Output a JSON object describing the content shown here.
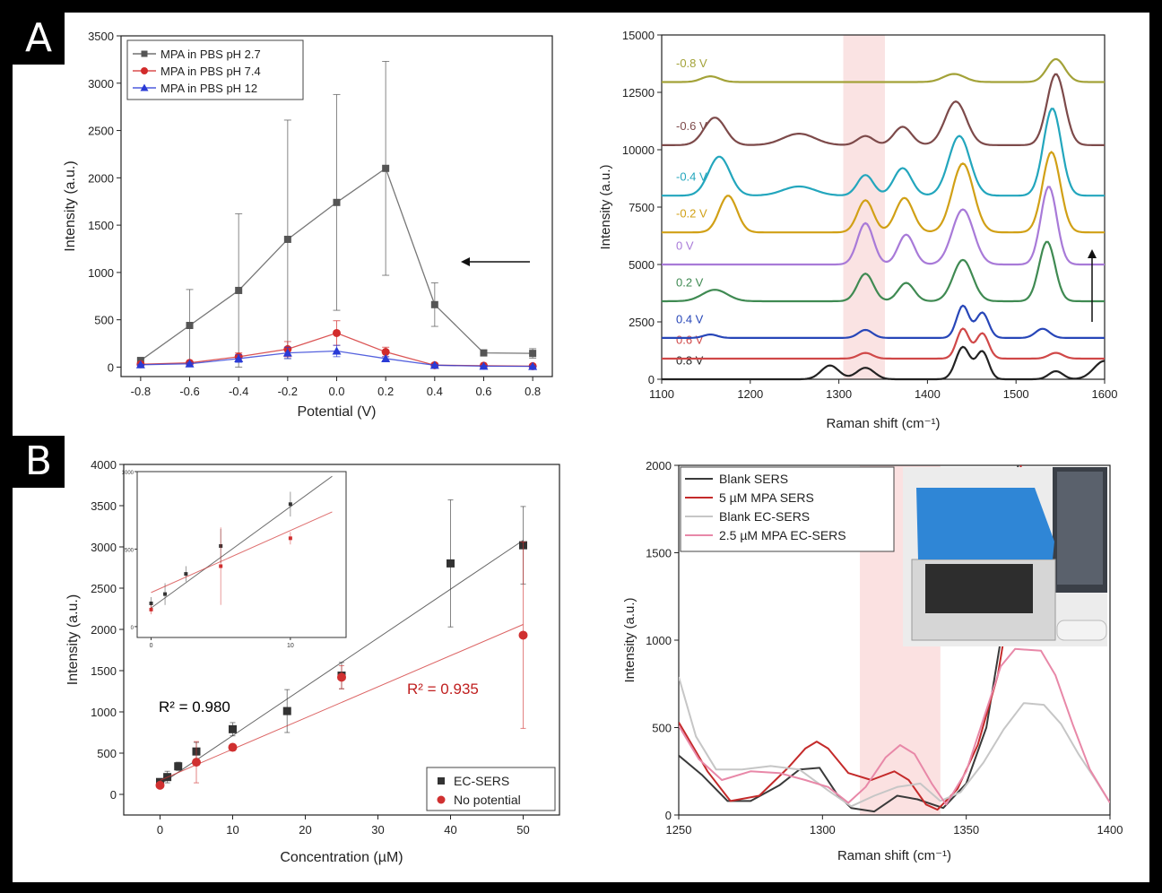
{
  "panel_labels": [
    "A",
    "B"
  ],
  "chart_data": [
    {
      "id": "A-left",
      "type": "line",
      "xlabel": "Potential (V)",
      "ylabel": "Intensity (a.u.)",
      "xlim": [
        -0.88,
        0.88
      ],
      "ylim": [
        -100,
        3500
      ],
      "xticks": [
        -0.8,
        -0.6,
        -0.4,
        -0.2,
        0.0,
        0.2,
        0.4,
        0.6,
        0.8
      ],
      "xtick_labels": [
        "-0.8",
        "-0.6",
        "-0.4",
        "-0.2",
        "0.0",
        "0.2",
        "0.4",
        "0.6",
        "0.8"
      ],
      "yticks": [
        0,
        500,
        1000,
        1500,
        2000,
        2500,
        3000,
        3500
      ],
      "legend_position": "top-left",
      "series": [
        {
          "name": "MPA in PBS pH 2.7",
          "color": "#555555",
          "marker": "square",
          "x": [
            -0.8,
            -0.6,
            -0.4,
            -0.2,
            0.0,
            0.2,
            0.4,
            0.6,
            0.8
          ],
          "y": [
            70,
            440,
            810,
            1350,
            1740,
            2100,
            660,
            150,
            145
          ],
          "err": [
            20,
            380,
            810,
            1260,
            1140,
            1130,
            230,
            30,
            50
          ]
        },
        {
          "name": "MPA in PBS pH 7.4",
          "color": "#d22b2b",
          "marker": "circle",
          "x": [
            -0.8,
            -0.6,
            -0.4,
            -0.2,
            0.0,
            0.2,
            0.4,
            0.6,
            0.8
          ],
          "y": [
            30,
            45,
            110,
            190,
            360,
            160,
            20,
            15,
            10
          ],
          "err": [
            5,
            15,
            40,
            80,
            130,
            50,
            10,
            5,
            5
          ]
        },
        {
          "name": "MPA in PBS pH 12",
          "color": "#2a3bd6",
          "marker": "triangle",
          "x": [
            -0.8,
            -0.6,
            -0.4,
            -0.2,
            0.0,
            0.2,
            0.4,
            0.6,
            0.8
          ],
          "y": [
            25,
            35,
            90,
            150,
            170,
            90,
            20,
            10,
            8
          ],
          "err": [
            5,
            15,
            40,
            60,
            60,
            20,
            10,
            5,
            5
          ]
        }
      ]
    },
    {
      "id": "A-right",
      "type": "line",
      "xlabel": "Raman shift (cm⁻¹)",
      "ylabel": "Intensity (a.u.)",
      "xlim": [
        1100,
        1600
      ],
      "ylim": [
        0,
        15000
      ],
      "xticks": [
        1100,
        1200,
        1300,
        1400,
        1500,
        1600
      ],
      "yticks": [
        0,
        2500,
        5000,
        7500,
        10000,
        12500,
        15000
      ],
      "ytick_labels": [
        "0",
        "2500",
        "5000",
        "7500",
        "10000",
        "12500",
        "15000"
      ],
      "highlight_band": [
        1305,
        1352
      ],
      "series": [
        {
          "name": "0.8 V",
          "color": "#222222",
          "baseline": 0,
          "peaks": [
            [
              1290,
              600,
              10
            ],
            [
              1330,
              500,
              10
            ],
            [
              1440,
              1400,
              8
            ],
            [
              1462,
              1200,
              7
            ],
            [
              1545,
              350,
              8
            ],
            [
              1600,
              800,
              12
            ]
          ]
        },
        {
          "name": "0.6 V",
          "color": "#d04848",
          "baseline": 900,
          "peaks": [
            [
              1330,
              250,
              8
            ],
            [
              1440,
              1300,
              7
            ],
            [
              1462,
              1100,
              7
            ],
            [
              1545,
              250,
              8
            ]
          ]
        },
        {
          "name": "0.4 V",
          "color": "#2746b8",
          "baseline": 1800,
          "peaks": [
            [
              1155,
              150,
              8
            ],
            [
              1330,
              350,
              8
            ],
            [
              1440,
              1400,
              7
            ],
            [
              1462,
              1100,
              7
            ],
            [
              1530,
              400,
              8
            ]
          ]
        },
        {
          "name": "0.2 V",
          "color": "#3f8a52",
          "baseline": 3400,
          "peaks": [
            [
              1160,
              500,
              14
            ],
            [
              1330,
              1200,
              9
            ],
            [
              1376,
              800,
              9
            ],
            [
              1440,
              1800,
              11
            ],
            [
              1535,
              2600,
              9
            ]
          ]
        },
        {
          "name": "0 V",
          "color": "#a87ad8",
          "baseline": 5000,
          "peaks": [
            [
              1330,
              1800,
              9
            ],
            [
              1376,
              1300,
              9
            ],
            [
              1440,
              2400,
              12
            ],
            [
              1537,
              3400,
              9
            ]
          ]
        },
        {
          "name": "-0.2 V",
          "color": "#d1a016",
          "baseline": 6400,
          "peaks": [
            [
              1175,
              1600,
              10
            ],
            [
              1330,
              1400,
              9
            ],
            [
              1374,
              1500,
              10
            ],
            [
              1440,
              3000,
              12
            ],
            [
              1540,
              3500,
              10
            ]
          ]
        },
        {
          "name": "-0.4 V",
          "color": "#23a6bd",
          "baseline": 8000,
          "peaks": [
            [
              1165,
              1700,
              12
            ],
            [
              1255,
              400,
              18
            ],
            [
              1330,
              900,
              9
            ],
            [
              1372,
              1200,
              10
            ],
            [
              1436,
              2600,
              12
            ],
            [
              1541,
              3800,
              10
            ]
          ]
        },
        {
          "name": "-0.6 V",
          "color": "#7d4a4a",
          "baseline": 10200,
          "peaks": [
            [
              1160,
              1200,
              12
            ],
            [
              1255,
              500,
              18
            ],
            [
              1330,
              400,
              9
            ],
            [
              1372,
              800,
              10
            ],
            [
              1432,
              1900,
              12
            ],
            [
              1545,
              3100,
              10
            ]
          ]
        },
        {
          "name": "-0.8 V",
          "color": "#a3a238",
          "baseline": 12950,
          "peaks": [
            [
              1155,
              250,
              10
            ],
            [
              1430,
              350,
              12
            ],
            [
              1545,
              1000,
              10
            ]
          ]
        }
      ]
    },
    {
      "id": "B-left",
      "type": "scatter",
      "xlabel": "Concentration (µM)",
      "ylabel": "Intensity (a.u.)",
      "xlim": [
        -5,
        55
      ],
      "ylim": [
        -250,
        4000
      ],
      "xticks": [
        0,
        10,
        20,
        30,
        40,
        50
      ],
      "yticks": [
        0,
        500,
        1000,
        1500,
        2000,
        2500,
        3000,
        3500,
        4000
      ],
      "legend_position": "bottom-right",
      "annotations": [
        {
          "text": "R² = 0.980",
          "color": "#000000"
        },
        {
          "text": "R² = 0.935",
          "color": "#c02020"
        }
      ],
      "series": [
        {
          "name": "EC-SERS",
          "color": "#333333",
          "marker": "square",
          "x": [
            0,
            1,
            2.5,
            5,
            10,
            17.5,
            25,
            40,
            50
          ],
          "y": [
            150,
            210,
            340,
            520,
            790,
            1010,
            1440,
            2800,
            3020
          ],
          "err": [
            40,
            70,
            50,
            110,
            80,
            260,
            160,
            770,
            470
          ],
          "fit": [
            [
              0,
              120
            ],
            [
              50,
              3080
            ]
          ]
        },
        {
          "name": "No potential",
          "color": "#d03030",
          "marker": "circle",
          "x": [
            0,
            5,
            10,
            25,
            50
          ],
          "y": [
            110,
            390,
            570,
            1420,
            1930
          ],
          "err": [
            30,
            250,
            40,
            140,
            1130
          ],
          "fit": [
            [
              0,
              170
            ],
            [
              50,
              2060
            ]
          ]
        }
      ],
      "inset": {
        "xlim": [
          -1,
          14
        ],
        "ylim": [
          -70,
          1000
        ],
        "xticks": [
          0,
          10
        ],
        "yticks": [
          0,
          500,
          1000
        ],
        "series": [
          {
            "color": "#333333",
            "x": [
              0,
              1,
              2.5,
              5,
              10
            ],
            "y": [
              150,
              210,
              340,
              520,
              790
            ],
            "err": [
              40,
              70,
              50,
              110,
              80
            ],
            "fit": [
              [
                0,
                120
              ],
              [
                13,
                970
              ]
            ]
          },
          {
            "color": "#d03030",
            "x": [
              0,
              5,
              10
            ],
            "y": [
              110,
              390,
              570
            ],
            "err": [
              30,
              250,
              40
            ],
            "fit": [
              [
                0,
                220
              ],
              [
                13,
                740
              ]
            ]
          }
        ]
      }
    },
    {
      "id": "B-right",
      "type": "line",
      "xlabel": "Raman shift (cm⁻¹)",
      "ylabel": "Intensity (a.u.)",
      "xlim": [
        1250,
        1400
      ],
      "ylim": [
        0,
        2000
      ],
      "xticks": [
        1250,
        1300,
        1350,
        1400
      ],
      "yticks": [
        0,
        500,
        1000,
        1500,
        2000
      ],
      "highlight_band": [
        1313,
        1341
      ],
      "legend_position": "top-left",
      "series": [
        {
          "name": "Blank SERS",
          "color": "#3a3a3a",
          "points": [
            [
              1250,
              340
            ],
            [
              1258,
              230
            ],
            [
              1267,
              80
            ],
            [
              1275,
              80
            ],
            [
              1285,
              170
            ],
            [
              1292,
              260
            ],
            [
              1299,
              270
            ],
            [
              1305,
              120
            ],
            [
              1310,
              40
            ],
            [
              1318,
              20
            ],
            [
              1326,
              110
            ],
            [
              1333,
              90
            ],
            [
              1342,
              40
            ],
            [
              1350,
              180
            ],
            [
              1357,
              500
            ],
            [
              1362,
              1000
            ],
            [
              1366,
              1600
            ],
            [
              1368,
              2000
            ]
          ]
        },
        {
          "name": "5 µM MPA SERS",
          "color": "#c42a2a",
          "points": [
            [
              1250,
              530
            ],
            [
              1260,
              250
            ],
            [
              1268,
              80
            ],
            [
              1278,
              110
            ],
            [
              1288,
              270
            ],
            [
              1294,
              380
            ],
            [
              1298,
              420
            ],
            [
              1302,
              380
            ],
            [
              1309,
              240
            ],
            [
              1317,
              200
            ],
            [
              1325,
              250
            ],
            [
              1330,
              200
            ],
            [
              1336,
              60
            ],
            [
              1340,
              30
            ],
            [
              1347,
              150
            ],
            [
              1354,
              400
            ],
            [
              1361,
              800
            ],
            [
              1366,
              1300
            ],
            [
              1369,
              2000
            ]
          ]
        },
        {
          "name": "Blank EC-SERS",
          "color": "#c6c6c6",
          "points": [
            [
              1250,
              790
            ],
            [
              1256,
              450
            ],
            [
              1263,
              260
            ],
            [
              1272,
              260
            ],
            [
              1282,
              280
            ],
            [
              1292,
              260
            ],
            [
              1302,
              140
            ],
            [
              1310,
              50
            ],
            [
              1318,
              110
            ],
            [
              1326,
              160
            ],
            [
              1334,
              180
            ],
            [
              1341,
              80
            ],
            [
              1348,
              130
            ],
            [
              1356,
              300
            ],
            [
              1363,
              490
            ],
            [
              1370,
              640
            ],
            [
              1377,
              630
            ],
            [
              1383,
              520
            ],
            [
              1389,
              350
            ],
            [
              1395,
              200
            ],
            [
              1400,
              70
            ]
          ]
        },
        {
          "name": "2.5 µM MPA EC-SERS",
          "color": "#e888a8",
          "points": [
            [
              1250,
              510
            ],
            [
              1257,
              320
            ],
            [
              1265,
              200
            ],
            [
              1275,
              250
            ],
            [
              1285,
              240
            ],
            [
              1294,
              200
            ],
            [
              1302,
              160
            ],
            [
              1309,
              70
            ],
            [
              1315,
              160
            ],
            [
              1322,
              330
            ],
            [
              1327,
              400
            ],
            [
              1332,
              350
            ],
            [
              1338,
              180
            ],
            [
              1343,
              60
            ],
            [
              1350,
              250
            ],
            [
              1356,
              550
            ],
            [
              1362,
              850
            ],
            [
              1367,
              950
            ],
            [
              1376,
              940
            ],
            [
              1381,
              800
            ],
            [
              1387,
              520
            ],
            [
              1393,
              260
            ],
            [
              1400,
              70
            ]
          ]
        }
      ],
      "inset_photo": "benchtop Raman instrument with blue lid and laptop"
    }
  ]
}
